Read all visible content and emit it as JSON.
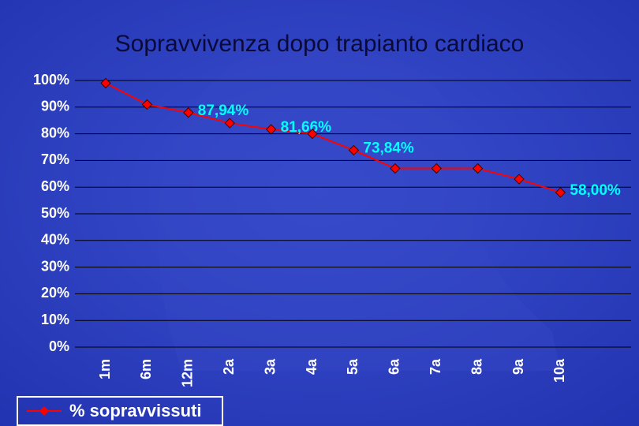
{
  "chart_data": {
    "type": "line",
    "title": "Sopravvivenza dopo trapianto cardiaco",
    "categories": [
      "1m",
      "6m",
      "12m",
      "2a",
      "3a",
      "4a",
      "5a",
      "6a",
      "7a",
      "8a",
      "9a",
      "10a"
    ],
    "series": [
      {
        "name": "% sopravvissuti",
        "color": "#ff0000",
        "values": [
          99,
          91,
          87.94,
          84,
          81.66,
          80,
          73.84,
          67,
          67,
          67,
          63,
          58
        ],
        "value_labels": [
          null,
          null,
          "87,94%",
          null,
          "81,66%",
          null,
          "73,84%",
          null,
          null,
          null,
          null,
          "58,00%"
        ]
      }
    ],
    "ylim": [
      0,
      100
    ],
    "yticks": [
      {
        "value": 0,
        "label": "0%"
      },
      {
        "value": 10,
        "label": "10%"
      },
      {
        "value": 20,
        "label": "20%"
      },
      {
        "value": 30,
        "label": "30%"
      },
      {
        "value": 40,
        "label": "40%"
      },
      {
        "value": 50,
        "label": "50%"
      },
      {
        "value": 60,
        "label": "60%"
      },
      {
        "value": 70,
        "label": "70%"
      },
      {
        "value": 80,
        "label": "80%"
      },
      {
        "value": 90,
        "label": "90%"
      },
      {
        "value": 100,
        "label": "100%"
      }
    ],
    "grid": true,
    "legend": "bottom-left"
  }
}
